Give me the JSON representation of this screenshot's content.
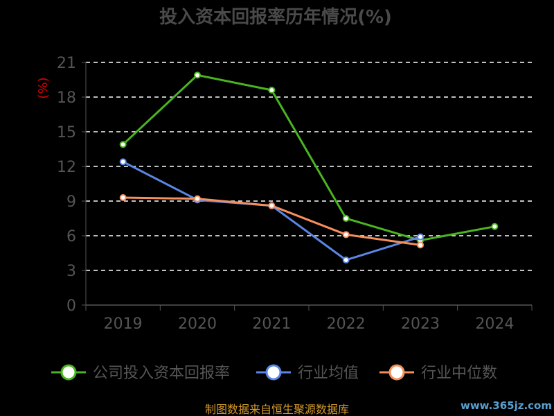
{
  "chart_data": {
    "type": "line",
    "title": "投入资本回报率历年情况(%)",
    "ylabel": "(%)",
    "categories": [
      "2019",
      "2020",
      "2021",
      "2022",
      "2023",
      "2024"
    ],
    "y_ticks": [
      "0",
      "3",
      "6",
      "9",
      "12",
      "15",
      "18",
      "21"
    ],
    "ylim": [
      0,
      21
    ],
    "grid": true,
    "legend_position": "bottom",
    "series": [
      {
        "name": "公司投入资本回报率",
        "color": "#4ab520",
        "values": [
          13.9,
          19.9,
          18.6,
          7.5,
          5.6,
          6.8
        ]
      },
      {
        "name": "行业均值",
        "color": "#5b86e5",
        "values": [
          12.4,
          9.1,
          8.6,
          3.9,
          5.9,
          null
        ]
      },
      {
        "name": "行业中位数",
        "color": "#f5905c",
        "values": [
          9.3,
          9.2,
          8.6,
          6.1,
          5.2,
          null
        ]
      }
    ]
  },
  "footer": {
    "source": "制图数据来自恒生聚源数据库",
    "watermark": "www.365jz.com"
  }
}
